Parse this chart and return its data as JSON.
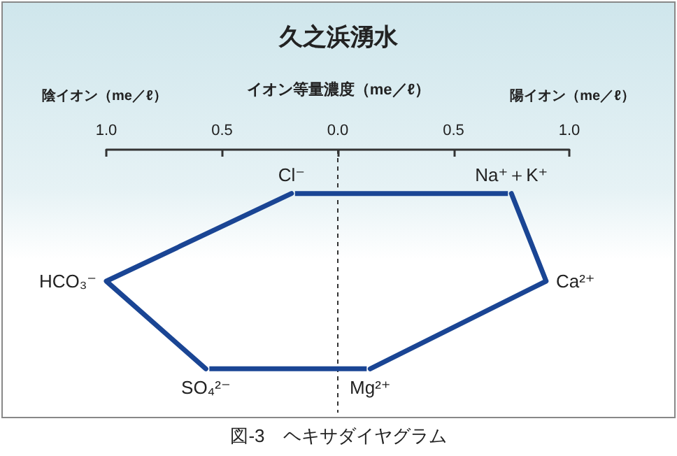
{
  "chart_data": {
    "type": "line",
    "orientation": "horizontal",
    "title": "久之浜湧水",
    "xlabel": "イオン等量濃度（me／ℓ）",
    "annotations": [
      "陰イオン（me／ℓ）",
      "陽イオン（me／ℓ）",
      "図-3　ヘキサダイヤグラム"
    ],
    "categories": [
      "Cl⁻",
      "HCO₃⁻",
      "SO₄²⁻"
    ],
    "y2_categories": [
      "Na⁺＋K⁺",
      "Ca²⁺",
      "Mg²⁺"
    ],
    "series": [
      {
        "color": "#1a4594",
        "values": [
          -0.2,
          -1.0,
          -0.57
        ]
      },
      {
        "color": "#1a4594",
        "values": [
          0.75,
          0.9,
          0.14
        ]
      }
    ],
    "xlim": [
      -1,
      1
    ],
    "xticks": [
      {
        "value": -1,
        "label": "1.0"
      },
      {
        "value": -0.5,
        "label": "0.5"
      },
      {
        "value": 0,
        "label": "0.0"
      },
      {
        "value": 0.5,
        "label": "0.5"
      },
      {
        "value": 1,
        "label": "1.0"
      }
    ],
    "ref_lines": [
      {
        "axis": "x",
        "value": 0,
        "color": "#333333",
        "line_style": "dashed"
      }
    ],
    "tick_labels": "x",
    "marker": "none",
    "line_style": "solid"
  }
}
